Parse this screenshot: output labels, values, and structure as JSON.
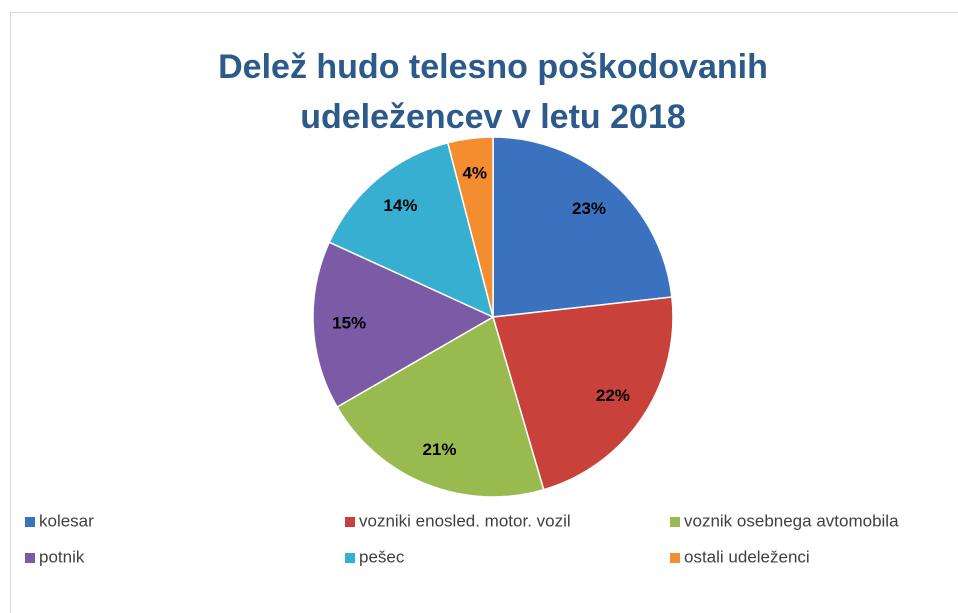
{
  "chart_data": {
    "type": "pie",
    "title": "Delež hudo telesno poškodovanih udeležencev v letu 2018",
    "categories": [
      "kolesar",
      "vozniki enosled. motor. vozil",
      "voznik osebnega avtomobila",
      "potnik",
      "pešec",
      "ostali udeleženci"
    ],
    "values": [
      23,
      22,
      21,
      15,
      14,
      4
    ],
    "value_labels": [
      "23%",
      "22%",
      "21%",
      "15%",
      "14%",
      "4%"
    ],
    "colors": [
      "#3a72c0",
      "#c8413b",
      "#99ba4f",
      "#7c5ba6",
      "#37afd0",
      "#f38d2f"
    ],
    "legend": "bottom"
  }
}
